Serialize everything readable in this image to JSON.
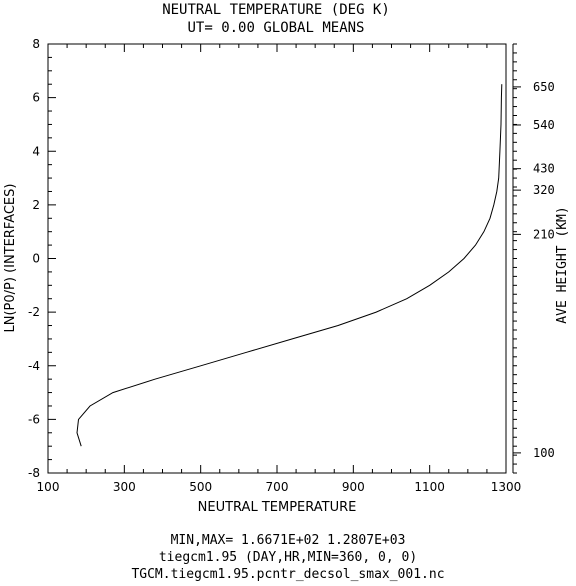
{
  "chart_data": {
    "type": "line",
    "title": "NEUTRAL TEMPERATURE (DEG K)",
    "subtitle": "UT= 0.00 GLOBAL MEANS",
    "xlabel": "NEUTRAL TEMPERATURE",
    "ylabel": "LN(P0/P) (INTERFACES)",
    "right_axis_label": "AVE HEIGHT (KM)",
    "xlim": [
      100,
      1300
    ],
    "ylim": [
      -8,
      8
    ],
    "x_ticks": [
      100,
      300,
      500,
      700,
      900,
      1100,
      1300
    ],
    "y_ticks": [
      -8,
      -6,
      -4,
      -2,
      0,
      2,
      4,
      6,
      8
    ],
    "right_ticks": [
      {
        "label": "100",
        "ln": -7.25
      },
      {
        "label": "210",
        "ln": 0.9
      },
      {
        "label": "320",
        "ln": 2.55
      },
      {
        "label": "430",
        "ln": 3.35
      },
      {
        "label": "540",
        "ln": 4.98
      },
      {
        "label": "650",
        "ln": 6.4
      }
    ],
    "grid": false,
    "series": [
      {
        "x": [
          187,
          176,
          180,
          210,
          270,
          380,
          500,
          620,
          740,
          860,
          960,
          1040,
          1100,
          1150,
          1190,
          1220,
          1242,
          1258,
          1268,
          1276,
          1281,
          1284,
          1287,
          1288,
          1289
        ],
        "y": [
          -7.0,
          -6.5,
          -6.0,
          -5.5,
          -5.0,
          -4.5,
          -4.0,
          -3.5,
          -3.0,
          -2.5,
          -2.0,
          -1.5,
          -1.0,
          -0.5,
          0.0,
          0.5,
          1.0,
          1.5,
          2.0,
          2.5,
          3.0,
          4.0,
          5.0,
          6.0,
          6.5
        ]
      }
    ]
  },
  "footer": {
    "line1": "MIN,MAX=  1.6671E+02  1.2807E+03",
    "line2": "tiegcm1.95  (DAY,HR,MIN=360, 0, 0)",
    "line3": "TGCM.tiegcm1.95.pcntr_decsol_smax_001.nc"
  }
}
